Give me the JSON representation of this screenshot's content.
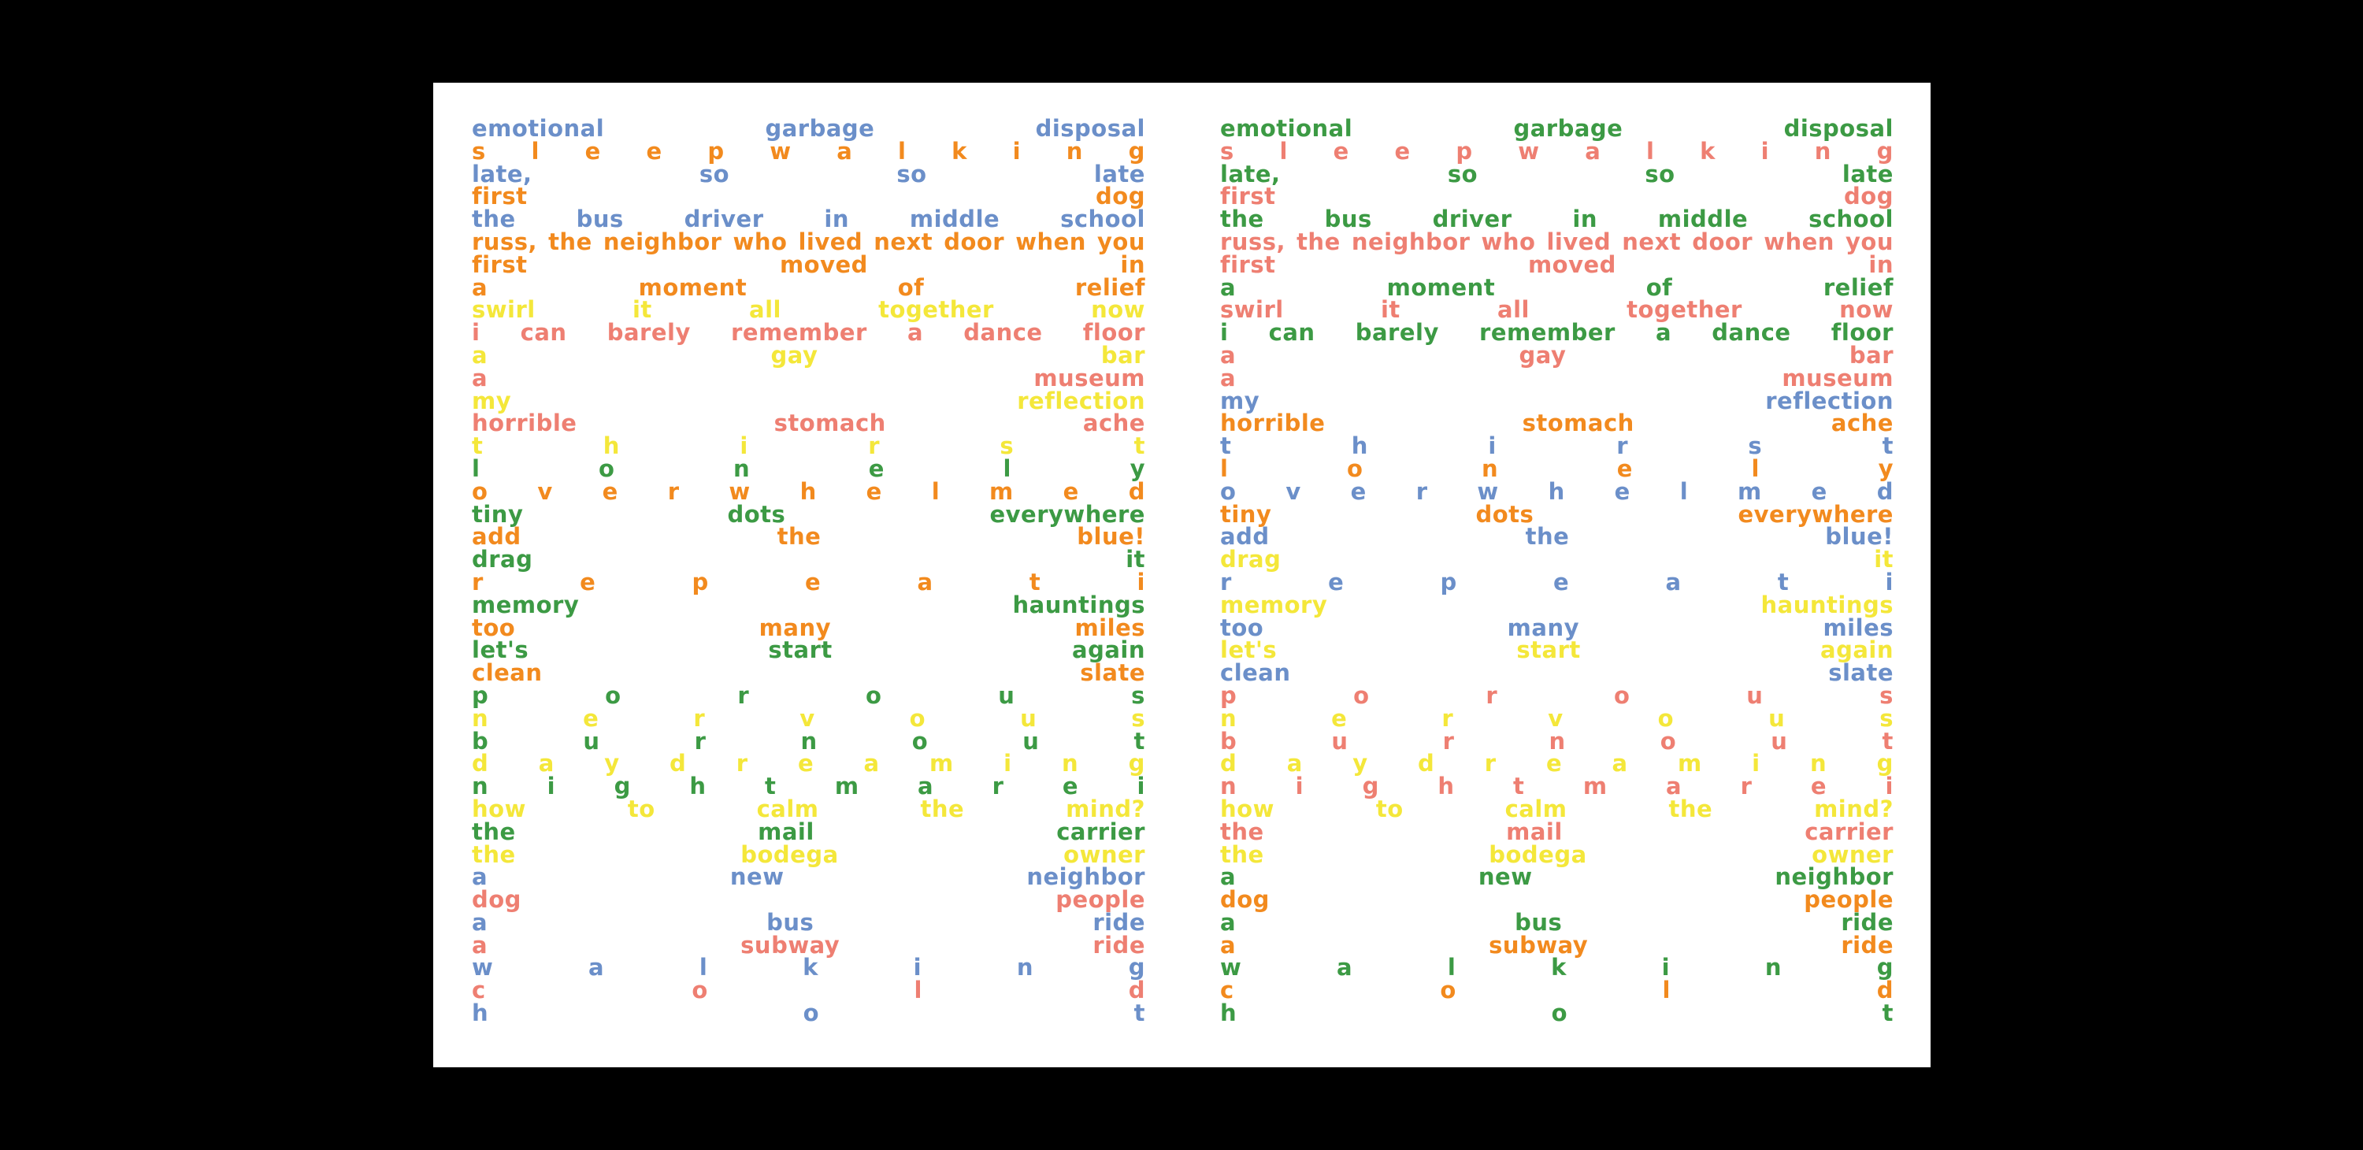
{
  "palette": {
    "blue": "#6b8fc9",
    "salmon": "#ee7f72",
    "orange": "#f28a1e",
    "yellow": "#f4e73a",
    "green": "#3c9a44"
  },
  "pages": [
    {
      "lines": [
        {
          "color": "blue",
          "words": [
            "emotional",
            "garbage",
            "disposal"
          ]
        },
        {
          "color": "orange",
          "words": [
            "s",
            "l",
            "e",
            "e",
            "p",
            "w",
            "a",
            "l",
            "k",
            "i",
            "n",
            "g"
          ]
        },
        {
          "color": "blue",
          "words": [
            "late,",
            "so",
            "so",
            "late"
          ]
        },
        {
          "color": "orange",
          "words": [
            "first",
            "dog"
          ]
        },
        {
          "color": "blue",
          "words": [
            "the",
            "bus",
            "driver",
            "in",
            "middle",
            "school"
          ]
        },
        {
          "color": "orange",
          "words": [
            "russ,",
            "the",
            "neighbor",
            "who",
            "lived",
            "next",
            "door",
            "when",
            "you"
          ]
        },
        {
          "color": "orange",
          "words": [
            "first",
            "moved",
            "in"
          ]
        },
        {
          "color": "orange",
          "words": [
            "a",
            "moment",
            "of",
            "relief"
          ]
        },
        {
          "color": "yellow",
          "words": [
            "swirl",
            "it",
            "all",
            "together",
            "now"
          ]
        },
        {
          "color": "salmon",
          "words": [
            "i",
            "can",
            "barely",
            "remember",
            "a",
            "dance",
            "floor"
          ]
        },
        {
          "color": "yellow",
          "words": [
            "a",
            "gay",
            "bar"
          ]
        },
        {
          "color": "salmon",
          "words": [
            "a",
            "museum"
          ]
        },
        {
          "color": "yellow",
          "words": [
            "my",
            "reflection"
          ]
        },
        {
          "color": "salmon",
          "words": [
            "horrible",
            "stomach",
            "ache"
          ]
        },
        {
          "color": "yellow",
          "words": [
            "t",
            "h",
            "i",
            "r",
            "s",
            "t"
          ]
        },
        {
          "color": "green",
          "words": [
            "l",
            "o",
            "n",
            "e",
            "l",
            "y"
          ]
        },
        {
          "color": "orange",
          "words": [
            "o",
            "v",
            "e",
            "r",
            "w",
            "h",
            "e",
            "l",
            "m",
            "e",
            "d"
          ]
        },
        {
          "color": "green",
          "words": [
            "tiny",
            "dots",
            "everywhere"
          ]
        },
        {
          "color": "orange",
          "words": [
            "add",
            "the",
            "blue!"
          ]
        },
        {
          "color": "green",
          "words": [
            "drag",
            "it"
          ]
        },
        {
          "color": "orange",
          "words": [
            "r",
            "e",
            "p",
            "e",
            "a",
            "t",
            "i"
          ]
        },
        {
          "color": "green",
          "words": [
            "memory",
            "hauntings"
          ]
        },
        {
          "color": "orange",
          "words": [
            "too",
            "many",
            "miles"
          ]
        },
        {
          "color": "green",
          "words": [
            "let's",
            "start",
            "again"
          ]
        },
        {
          "color": "orange",
          "words": [
            "clean",
            "slate"
          ]
        },
        {
          "color": "green",
          "words": [
            "p",
            "o",
            "r",
            "o",
            "u",
            "s"
          ]
        },
        {
          "color": "yellow",
          "words": [
            "n",
            "e",
            "r",
            "v",
            "o",
            "u",
            "s"
          ]
        },
        {
          "color": "green",
          "words": [
            "b",
            "u",
            "r",
            "n",
            "o",
            "u",
            "t"
          ]
        },
        {
          "color": "yellow",
          "words": [
            "d",
            "a",
            "y",
            "d",
            "r",
            "e",
            "a",
            "m",
            "i",
            "n",
            "g"
          ]
        },
        {
          "color": "green",
          "words": [
            "n",
            "i",
            "g",
            "h",
            "t",
            "m",
            "a",
            "r",
            "e",
            "i"
          ]
        },
        {
          "color": "yellow",
          "words": [
            "how",
            "to",
            "calm",
            "the",
            "mind?"
          ]
        },
        {
          "color": "green",
          "words": [
            "the",
            "mail",
            "carrier"
          ]
        },
        {
          "color": "yellow",
          "words": [
            "the",
            "bodega",
            "owner"
          ]
        },
        {
          "color": "blue",
          "words": [
            "a",
            "new",
            "neighbor"
          ]
        },
        {
          "color": "salmon",
          "words": [
            "dog",
            "people"
          ]
        },
        {
          "color": "blue",
          "words": [
            "a",
            "bus",
            "ride"
          ]
        },
        {
          "color": "salmon",
          "words": [
            "a",
            "subway",
            "ride"
          ]
        },
        {
          "color": "blue",
          "words": [
            "w",
            "a",
            "l",
            "k",
            "i",
            "n",
            "g"
          ]
        },
        {
          "color": "salmon",
          "words": [
            "c",
            "o",
            "l",
            "d"
          ]
        },
        {
          "color": "blue",
          "words": [
            "h",
            "o",
            "t"
          ]
        }
      ]
    },
    {
      "lines": [
        {
          "color": "green",
          "words": [
            "emotional",
            "garbage",
            "disposal"
          ]
        },
        {
          "color": "salmon",
          "words": [
            "s",
            "l",
            "e",
            "e",
            "p",
            "w",
            "a",
            "l",
            "k",
            "i",
            "n",
            "g"
          ]
        },
        {
          "color": "green",
          "words": [
            "late,",
            "so",
            "so",
            "late"
          ]
        },
        {
          "color": "salmon",
          "words": [
            "first",
            "dog"
          ]
        },
        {
          "color": "green",
          "words": [
            "the",
            "bus",
            "driver",
            "in",
            "middle",
            "school"
          ]
        },
        {
          "color": "salmon",
          "words": [
            "russ,",
            "the",
            "neighbor",
            "who",
            "lived",
            "next",
            "door",
            "when",
            "you"
          ]
        },
        {
          "color": "salmon",
          "words": [
            "first",
            "moved",
            "in"
          ]
        },
        {
          "color": "green",
          "words": [
            "a",
            "moment",
            "of",
            "relief"
          ]
        },
        {
          "color": "salmon",
          "words": [
            "swirl",
            "it",
            "all",
            "together",
            "now"
          ]
        },
        {
          "color": "green",
          "words": [
            "i",
            "can",
            "barely",
            "remember",
            "a",
            "dance",
            "floor"
          ]
        },
        {
          "color": "salmon",
          "words": [
            "a",
            "gay",
            "bar"
          ]
        },
        {
          "color": "salmon",
          "words": [
            "a",
            "museum"
          ]
        },
        {
          "color": "blue",
          "words": [
            "my",
            "reflection"
          ]
        },
        {
          "color": "orange",
          "words": [
            "horrible",
            "stomach",
            "ache"
          ]
        },
        {
          "color": "blue",
          "words": [
            "t",
            "h",
            "i",
            "r",
            "s",
            "t"
          ]
        },
        {
          "color": "orange",
          "words": [
            "l",
            "o",
            "n",
            "e",
            "l",
            "y"
          ]
        },
        {
          "color": "blue",
          "words": [
            "o",
            "v",
            "e",
            "r",
            "w",
            "h",
            "e",
            "l",
            "m",
            "e",
            "d"
          ]
        },
        {
          "color": "orange",
          "words": [
            "tiny",
            "dots",
            "everywhere"
          ]
        },
        {
          "color": "blue",
          "words": [
            "add",
            "the",
            "blue!"
          ]
        },
        {
          "color": "yellow",
          "words": [
            "drag",
            "it"
          ]
        },
        {
          "color": "blue",
          "words": [
            "r",
            "e",
            "p",
            "e",
            "a",
            "t",
            "i"
          ]
        },
        {
          "color": "yellow",
          "words": [
            "memory",
            "hauntings"
          ]
        },
        {
          "color": "blue",
          "words": [
            "too",
            "many",
            "miles"
          ]
        },
        {
          "color": "yellow",
          "words": [
            "let's",
            "start",
            "again"
          ]
        },
        {
          "color": "blue",
          "words": [
            "clean",
            "slate"
          ]
        },
        {
          "color": "salmon",
          "words": [
            "p",
            "o",
            "r",
            "o",
            "u",
            "s"
          ]
        },
        {
          "color": "yellow",
          "words": [
            "n",
            "e",
            "r",
            "v",
            "o",
            "u",
            "s"
          ]
        },
        {
          "color": "salmon",
          "words": [
            "b",
            "u",
            "r",
            "n",
            "o",
            "u",
            "t"
          ]
        },
        {
          "color": "yellow",
          "words": [
            "d",
            "a",
            "y",
            "d",
            "r",
            "e",
            "a",
            "m",
            "i",
            "n",
            "g"
          ]
        },
        {
          "color": "salmon",
          "words": [
            "n",
            "i",
            "g",
            "h",
            "t",
            "m",
            "a",
            "r",
            "e",
            "i"
          ]
        },
        {
          "color": "yellow",
          "words": [
            "how",
            "to",
            "calm",
            "the",
            "mind?"
          ]
        },
        {
          "color": "salmon",
          "words": [
            "the",
            "mail",
            "carrier"
          ]
        },
        {
          "color": "yellow",
          "words": [
            "the",
            "bodega",
            "owner"
          ]
        },
        {
          "color": "green",
          "words": [
            "a",
            "new",
            "neighbor"
          ]
        },
        {
          "color": "orange",
          "words": [
            "dog",
            "people"
          ]
        },
        {
          "color": "green",
          "words": [
            "a",
            "bus",
            "ride"
          ]
        },
        {
          "color": "orange",
          "words": [
            "a",
            "subway",
            "ride"
          ]
        },
        {
          "color": "green",
          "words": [
            "w",
            "a",
            "l",
            "k",
            "i",
            "n",
            "g"
          ]
        },
        {
          "color": "orange",
          "words": [
            "c",
            "o",
            "l",
            "d"
          ]
        },
        {
          "color": "green",
          "words": [
            "h",
            "o",
            "t"
          ]
        }
      ]
    }
  ]
}
